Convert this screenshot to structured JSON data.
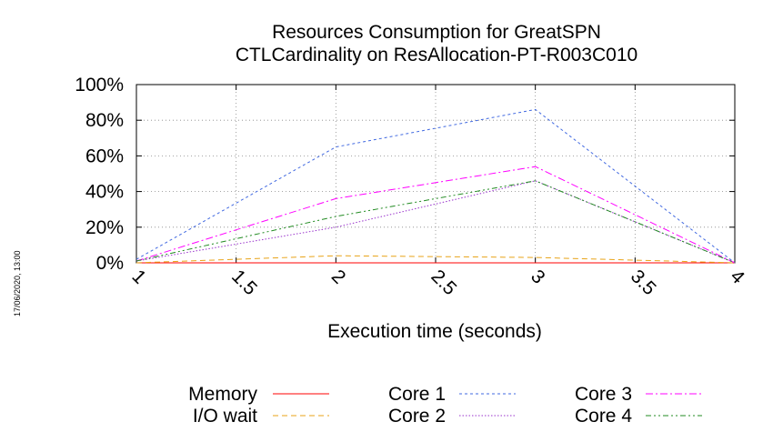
{
  "chart_data": {
    "type": "line",
    "title": "Resources Consumption for GreatSPN",
    "subtitle": "CTLCardinality on ResAllocation-PT-R003C010",
    "xlabel": "Execution time (seconds)",
    "ylabel": "",
    "xlim": [
      1,
      4
    ],
    "ylim": [
      0,
      100
    ],
    "x_ticks": [
      "1",
      "1.5",
      "2",
      "2.5",
      "3",
      "3.5",
      "4"
    ],
    "y_ticks": [
      "0%",
      "20%",
      "40%",
      "60%",
      "80%",
      "100%"
    ],
    "grid": true,
    "legend_position": "bottom",
    "series": [
      {
        "name": "Memory",
        "color": "#ff0000",
        "dash": "solid",
        "x": [
          1,
          2,
          3,
          4
        ],
        "y": [
          0,
          0,
          0,
          0
        ]
      },
      {
        "name": "I/O wait",
        "color": "#e8a317",
        "dash": "dashed",
        "x": [
          1,
          2,
          3,
          4
        ],
        "y": [
          0,
          4,
          3,
          0
        ]
      },
      {
        "name": "Core 1",
        "color": "#4169e1",
        "dash": "dotted-dash",
        "x": [
          1,
          2,
          3,
          4
        ],
        "y": [
          2,
          65,
          86,
          0
        ]
      },
      {
        "name": "Core 2",
        "color": "#9932cc",
        "dash": "dotted",
        "x": [
          1,
          2,
          3,
          4
        ],
        "y": [
          1,
          20,
          46,
          0
        ]
      },
      {
        "name": "Core 3",
        "color": "#ff00ff",
        "dash": "dash-dot",
        "x": [
          1,
          2,
          3,
          4
        ],
        "y": [
          1,
          36,
          54,
          0
        ]
      },
      {
        "name": "Core 4",
        "color": "#228b22",
        "dash": "dash-dot-dot",
        "x": [
          1,
          2,
          3,
          4
        ],
        "y": [
          1,
          26,
          46,
          0
        ]
      }
    ]
  },
  "timestamp": "17/06/2020, 13:00"
}
